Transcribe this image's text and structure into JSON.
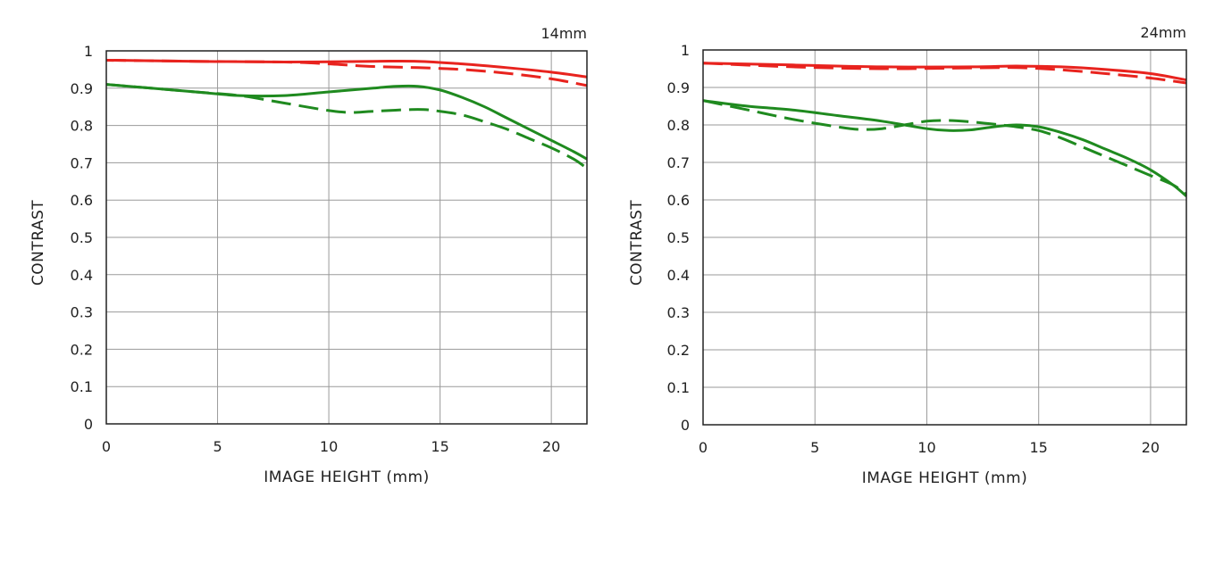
{
  "chart_data": [
    {
      "type": "line",
      "title": "14mm",
      "xlabel": "IMAGE HEIGHT (mm)",
      "ylabel": "CONTRAST",
      "xlim": [
        0,
        21.6
      ],
      "ylim": [
        0,
        1
      ],
      "x_ticks": [
        0,
        5,
        10,
        15,
        20
      ],
      "y_ticks": [
        0,
        0.1,
        0.2,
        0.3,
        0.4,
        0.5,
        0.6,
        0.7,
        0.8,
        0.9,
        1
      ],
      "x_tick_labels": [
        "0",
        "5",
        "10",
        "15",
        "20"
      ],
      "y_tick_labels": [
        "0",
        "0.1",
        "0.2",
        "0.3",
        "0.4",
        "0.5",
        "0.6",
        "0.7",
        "0.8",
        "0.9",
        "1"
      ],
      "grid": true,
      "series": [
        {
          "color": "#e8231e",
          "dash": "solid",
          "x": [
            0,
            4,
            8,
            12,
            14,
            16,
            18,
            20,
            21.6
          ],
          "y": [
            0.975,
            0.972,
            0.97,
            0.972,
            0.972,
            0.965,
            0.955,
            0.943,
            0.93
          ]
        },
        {
          "color": "#e8231e",
          "dash": "dashed",
          "x": [
            0,
            4,
            8,
            10,
            12,
            14,
            16,
            18,
            20,
            21.6
          ],
          "y": [
            0.975,
            0.972,
            0.97,
            0.965,
            0.958,
            0.955,
            0.95,
            0.94,
            0.925,
            0.907
          ]
        },
        {
          "color": "#1f8a1f",
          "dash": "solid",
          "x": [
            0,
            2,
            4,
            6,
            8,
            10,
            12,
            13,
            14,
            15,
            16,
            17,
            18,
            19,
            20,
            21,
            21.6
          ],
          "y": [
            0.91,
            0.9,
            0.89,
            0.88,
            0.88,
            0.89,
            0.9,
            0.905,
            0.905,
            0.895,
            0.875,
            0.85,
            0.82,
            0.79,
            0.76,
            0.73,
            0.71
          ]
        },
        {
          "color": "#1f8a1f",
          "dash": "dashed",
          "x": [
            0,
            2,
            4,
            6,
            8,
            10,
            11,
            12,
            14,
            15,
            16,
            17,
            18,
            19,
            20,
            21,
            21.6
          ],
          "y": [
            0.91,
            0.9,
            0.89,
            0.88,
            0.86,
            0.84,
            0.835,
            0.838,
            0.843,
            0.838,
            0.828,
            0.81,
            0.79,
            0.765,
            0.74,
            0.71,
            0.685
          ]
        }
      ]
    },
    {
      "type": "line",
      "title": "24mm",
      "xlabel": "IMAGE HEIGHT (mm)",
      "ylabel": "CONTRAST",
      "xlim": [
        0,
        21.6
      ],
      "ylim": [
        0,
        1
      ],
      "x_ticks": [
        0,
        5,
        10,
        15,
        20
      ],
      "y_ticks": [
        0,
        0.1,
        0.2,
        0.3,
        0.4,
        0.5,
        0.6,
        0.7,
        0.8,
        0.9,
        1
      ],
      "x_tick_labels": [
        "0",
        "5",
        "10",
        "15",
        "20"
      ],
      "y_tick_labels": [
        "0",
        "0.1",
        "0.2",
        "0.3",
        "0.4",
        "0.5",
        "0.6",
        "0.7",
        "0.8",
        "0.9",
        "1"
      ],
      "grid": true,
      "series": [
        {
          "color": "#e8231e",
          "dash": "solid",
          "x": [
            0,
            4,
            8,
            12,
            14,
            16,
            18,
            20,
            21.6
          ],
          "y": [
            0.965,
            0.96,
            0.955,
            0.955,
            0.957,
            0.955,
            0.948,
            0.937,
            0.92
          ]
        },
        {
          "color": "#e8231e",
          "dash": "dashed",
          "x": [
            0,
            4,
            8,
            12,
            14,
            16,
            18,
            20,
            21.6
          ],
          "y": [
            0.965,
            0.955,
            0.95,
            0.952,
            0.953,
            0.947,
            0.937,
            0.925,
            0.912
          ]
        },
        {
          "color": "#1f8a1f",
          "dash": "solid",
          "x": [
            0,
            2,
            4,
            6,
            8,
            10,
            11,
            12,
            13,
            14,
            15,
            16,
            17,
            18,
            19,
            20,
            21,
            21.6
          ],
          "y": [
            0.865,
            0.85,
            0.84,
            0.825,
            0.81,
            0.79,
            0.785,
            0.787,
            0.795,
            0.8,
            0.795,
            0.78,
            0.76,
            0.735,
            0.71,
            0.68,
            0.64,
            0.61
          ]
        },
        {
          "color": "#1f8a1f",
          "dash": "dashed",
          "x": [
            0,
            2,
            4,
            6,
            7,
            8,
            9,
            10,
            11,
            12,
            13,
            14,
            15,
            16,
            17,
            18,
            19,
            20,
            21,
            21.6
          ],
          "y": [
            0.865,
            0.84,
            0.815,
            0.795,
            0.788,
            0.79,
            0.8,
            0.81,
            0.812,
            0.808,
            0.802,
            0.795,
            0.785,
            0.765,
            0.74,
            0.715,
            0.69,
            0.665,
            0.64,
            0.615
          ]
        }
      ]
    }
  ]
}
